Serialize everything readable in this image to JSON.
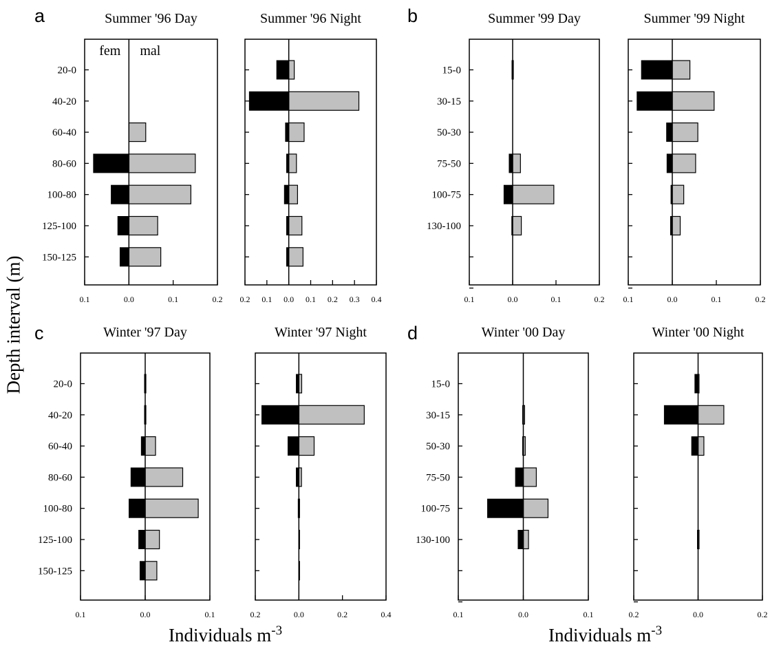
{
  "figure": {
    "panel_letters": [
      "a",
      "b",
      "c",
      "d"
    ],
    "y_axis_label": "Depth interval (m)",
    "x_axis_label_main": "Individuals m",
    "x_axis_label_exp": "-3",
    "sex_labels": {
      "female": "fem",
      "male": "mal"
    }
  },
  "colors": {
    "female": "#000000",
    "male": "#c0c0c0",
    "axis": "#000000"
  },
  "chart_data": [
    {
      "type": "bar",
      "orientation": "horizontal-diverging",
      "title": "Summer '96 Day",
      "categories": [
        "20-0",
        "40-20",
        "60-40",
        "80-60",
        "100-80",
        "125-100",
        "150-125"
      ],
      "series": [
        {
          "name": "fem",
          "values": [
            0,
            0,
            0,
            0.08,
            0.04,
            0.025,
            0.02
          ]
        },
        {
          "name": "mal",
          "values": [
            0,
            0,
            0.038,
            0.15,
            0.14,
            0.065,
            0.072
          ]
        }
      ],
      "xlim": [
        -0.1,
        0.2
      ],
      "xticks": [
        -0.1,
        0.0,
        0.1,
        0.2
      ],
      "xtick_labels": [
        "0.1",
        "0.0",
        "0.1",
        "0.2"
      ]
    },
    {
      "type": "bar",
      "orientation": "horizontal-diverging",
      "title": "Summer '96 Night",
      "categories": [
        "20-0",
        "40-20",
        "60-40",
        "80-60",
        "100-80",
        "125-100",
        "150-125"
      ],
      "series": [
        {
          "name": "fem",
          "values": [
            0.055,
            0.18,
            0.015,
            0.01,
            0.02,
            0.01,
            0.01
          ]
        },
        {
          "name": "mal",
          "values": [
            0.025,
            0.32,
            0.07,
            0.035,
            0.04,
            0.06,
            0.065
          ]
        }
      ],
      "xlim": [
        -0.2,
        0.4
      ],
      "xticks": [
        -0.2,
        -0.1,
        0.0,
        0.1,
        0.2,
        0.3,
        0.4
      ],
      "xtick_labels": [
        "0.2",
        "0.1",
        "0.0",
        "0.1",
        "0.2",
        "0.3",
        "0.4"
      ]
    },
    {
      "type": "bar",
      "orientation": "horizontal-diverging",
      "title": "Summer '99 Day",
      "categories": [
        "15-0",
        "30-15",
        "50-30",
        "75-50",
        "100-75",
        "130-100",
        "",
        ""
      ],
      "series": [
        {
          "name": "fem",
          "values": [
            0.001,
            0,
            0,
            0.008,
            0.02,
            0.002,
            0,
            0
          ]
        },
        {
          "name": "mal",
          "values": [
            0.001,
            0,
            0,
            0.018,
            0.095,
            0.02,
            0,
            0
          ]
        }
      ],
      "xlim": [
        -0.1,
        0.2
      ],
      "xticks": [
        -0.1,
        0.0,
        0.1,
        0.2
      ],
      "xtick_labels": [
        "0.1",
        "0.0",
        "0.1",
        "0.2"
      ]
    },
    {
      "type": "bar",
      "orientation": "horizontal-diverging",
      "title": "Summer '99 Night",
      "categories": [
        "15-0",
        "30-15",
        "50-30",
        "75-50",
        "100-75",
        "130-100",
        "",
        ""
      ],
      "series": [
        {
          "name": "fem",
          "values": [
            0.07,
            0.08,
            0.013,
            0.012,
            0.003,
            0.004,
            0,
            0
          ]
        },
        {
          "name": "mal",
          "values": [
            0.04,
            0.095,
            0.058,
            0.053,
            0.026,
            0.018,
            0,
            0
          ]
        }
      ],
      "xlim": [
        -0.1,
        0.2
      ],
      "xticks": [
        -0.1,
        0.0,
        0.1,
        0.2
      ],
      "xtick_labels": [
        "0.1",
        "0.0",
        "0.1",
        "0.2"
      ]
    },
    {
      "type": "bar",
      "orientation": "horizontal-diverging",
      "title": "Winter '97 Day",
      "categories": [
        "20-0",
        "40-20",
        "60-40",
        "80-60",
        "100-80",
        "125-100",
        "150-125"
      ],
      "series": [
        {
          "name": "fem",
          "values": [
            0.001,
            0.001,
            0.006,
            0.022,
            0.025,
            0.01,
            0.008
          ]
        },
        {
          "name": "mal",
          "values": [
            0.001,
            0.001,
            0.016,
            0.058,
            0.082,
            0.022,
            0.018
          ]
        }
      ],
      "xlim": [
        -0.1,
        0.1
      ],
      "xticks": [
        -0.1,
        0.0,
        0.1
      ],
      "xtick_labels": [
        "0.1",
        "0.0",
        "0.1"
      ]
    },
    {
      "type": "bar",
      "orientation": "horizontal-diverging",
      "title": "Winter '97 Night",
      "categories": [
        "20-0",
        "40-20",
        "60-40",
        "80-60",
        "100-80",
        "125-100",
        "150-125"
      ],
      "series": [
        {
          "name": "fem",
          "values": [
            0.012,
            0.17,
            0.05,
            0.012,
            0.003,
            0,
            0
          ]
        },
        {
          "name": "mal",
          "values": [
            0.013,
            0.3,
            0.07,
            0.012,
            0.003,
            0.001,
            0.001
          ]
        }
      ],
      "xlim": [
        -0.2,
        0.4
      ],
      "xticks": [
        -0.2,
        0.0,
        0.2,
        0.4
      ],
      "xtick_labels": [
        "0.2",
        "0.0",
        "0.2",
        "0.4"
      ]
    },
    {
      "type": "bar",
      "orientation": "horizontal-diverging",
      "title": "Winter '00 Day",
      "categories": [
        "15-0",
        "30-15",
        "50-30",
        "75-50",
        "100-75",
        "130-100",
        "",
        ""
      ],
      "series": [
        {
          "name": "fem",
          "values": [
            0,
            0.001,
            0.001,
            0.012,
            0.055,
            0.008,
            0,
            0
          ]
        },
        {
          "name": "mal",
          "values": [
            0,
            0.002,
            0.003,
            0.02,
            0.038,
            0.008,
            0,
            0
          ]
        }
      ],
      "xlim": [
        -0.1,
        0.1
      ],
      "xticks": [
        -0.1,
        0.0,
        0.1
      ],
      "xtick_labels": [
        "0.1",
        "0.0",
        "0.1"
      ]
    },
    {
      "type": "bar",
      "orientation": "horizontal-diverging",
      "title": "Winter '00 Night",
      "categories": [
        "15-0",
        "30-15",
        "50-30",
        "75-50",
        "100-75",
        "130-100",
        "",
        ""
      ],
      "series": [
        {
          "name": "fem",
          "values": [
            0.01,
            0.105,
            0.02,
            0,
            0,
            0.001,
            0,
            0
          ]
        },
        {
          "name": "mal",
          "values": [
            0.003,
            0.08,
            0.018,
            0,
            0,
            0.003,
            0,
            0
          ]
        }
      ],
      "xlim": [
        -0.2,
        0.2
      ],
      "xticks": [
        -0.2,
        0.0,
        0.2
      ],
      "xtick_labels": [
        "0.2",
        "0.0",
        "0.2"
      ]
    }
  ]
}
